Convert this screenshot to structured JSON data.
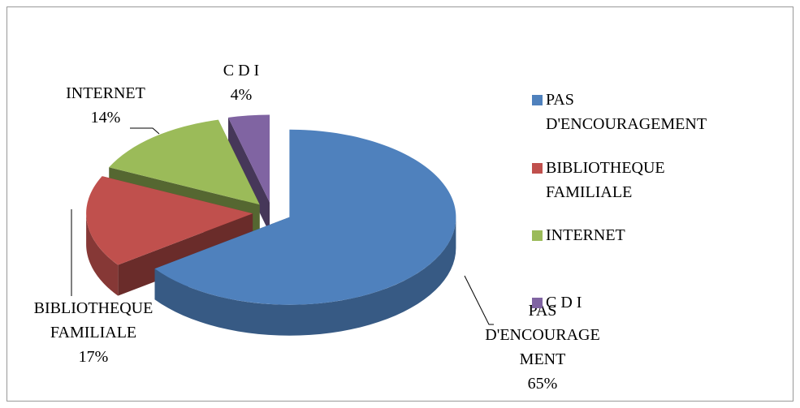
{
  "chart_data": {
    "type": "pie",
    "categories": [
      "PAS D'ENCOURAGEMENT",
      "BIBLIOTHEQUE FAMILIALE",
      "INTERNET",
      "C D I"
    ],
    "values": [
      65,
      17,
      14,
      4
    ],
    "value_labels": [
      "65%",
      "17%",
      "14%",
      "4%"
    ],
    "colors": [
      "#4f81bd",
      "#c0504d",
      "#9bbb59",
      "#8064a2"
    ],
    "legend": "right"
  }
}
